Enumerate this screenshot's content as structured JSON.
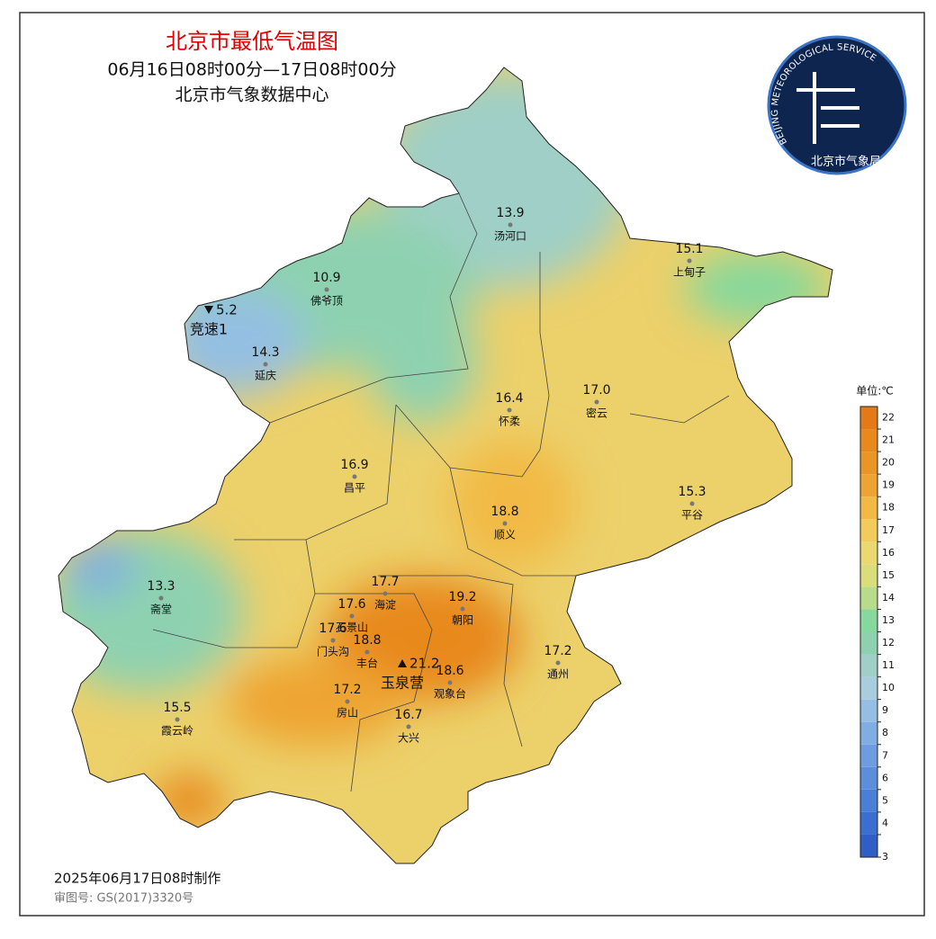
{
  "header": {
    "title": "北京市最低气温图",
    "subtitle": "06月16日08时00分—17日08时00分",
    "source": "北京市气象数据中心"
  },
  "logo": {
    "arc_text": "BEIJING METEOROLOGICAL SERVICE",
    "name": "北京市气象局"
  },
  "stations": [
    {
      "name": "汤河口",
      "value": "13.9",
      "marker": "dot"
    },
    {
      "name": "上甸子",
      "value": "15.1",
      "marker": "dot"
    },
    {
      "name": "佛爷顶",
      "value": "10.9",
      "marker": "dot"
    },
    {
      "name": "竞速1",
      "value": "5.2",
      "marker": "min"
    },
    {
      "name": "延庆",
      "value": "14.3",
      "marker": "dot"
    },
    {
      "name": "怀柔",
      "value": "16.4",
      "marker": "dot"
    },
    {
      "name": "密云",
      "value": "17.0",
      "marker": "dot"
    },
    {
      "name": "昌平",
      "value": "16.9",
      "marker": "dot"
    },
    {
      "name": "平谷",
      "value": "15.3",
      "marker": "dot"
    },
    {
      "name": "顺义",
      "value": "18.8",
      "marker": "dot"
    },
    {
      "name": "斋堂",
      "value": "13.3",
      "marker": "dot"
    },
    {
      "name": "海淀",
      "value": "17.7",
      "marker": "dot"
    },
    {
      "name": "石景山",
      "value": "17.6",
      "marker": "dot"
    },
    {
      "name": "朝阳",
      "value": "19.2",
      "marker": "dot"
    },
    {
      "name": "门头沟",
      "value": "17.6",
      "marker": "dot"
    },
    {
      "name": "丰台",
      "value": "18.8",
      "marker": "dot"
    },
    {
      "name": "通州",
      "value": "17.2",
      "marker": "dot"
    },
    {
      "name": "玉泉营",
      "value": "21.2",
      "marker": "max"
    },
    {
      "name": "观象台",
      "value": "18.6",
      "marker": "dot"
    },
    {
      "name": "房山",
      "value": "17.2",
      "marker": "dot"
    },
    {
      "name": "霞云岭",
      "value": "15.5",
      "marker": "dot"
    },
    {
      "name": "大兴",
      "value": "16.7",
      "marker": "dot"
    }
  ],
  "legend": {
    "unit": "单位:℃",
    "ticks": [
      3,
      4,
      5,
      6,
      7,
      8,
      9,
      10,
      11,
      12,
      13,
      14,
      15,
      16,
      17,
      18,
      19,
      20,
      21,
      22
    ],
    "colors": [
      "#2f5fc4",
      "#3a6fd0",
      "#4a7fd8",
      "#5b8fdc",
      "#6d9de0",
      "#80aee2",
      "#94bfe2",
      "#a8cedd",
      "#9fcfc6",
      "#8ed1b0",
      "#86d89c",
      "#b9dc8a",
      "#dbdc7a",
      "#ecd870",
      "#f2cb5c",
      "#f2ba45",
      "#eea432",
      "#ea9626",
      "#e8891e",
      "#e37a15"
    ]
  },
  "footer": {
    "made": "2025年06月17日08时制作",
    "approval": "审图号: GS(2017)3320号"
  }
}
